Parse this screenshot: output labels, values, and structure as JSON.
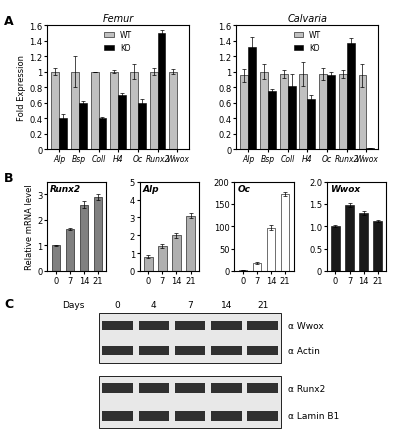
{
  "panel_labels": [
    "A",
    "B",
    "C"
  ],
  "chart_data": [
    {
      "type": "bar",
      "title": "Femur",
      "ylabel": "Fold Expression",
      "categories": [
        "Alp",
        "Bsp",
        "Coll",
        "H4",
        "Oc",
        "Runx2",
        "Wwox"
      ],
      "series": [
        {
          "name": "WT",
          "color": "#c0c0c0",
          "values": [
            1,
            1,
            1,
            1,
            1,
            1,
            1
          ],
          "errors": [
            0.05,
            0.2,
            0.0,
            0.02,
            0.1,
            0.05,
            0.03
          ]
        },
        {
          "name": "KO",
          "color": "#000000",
          "values": [
            0.4,
            0.6,
            0.4,
            0.7,
            0.6,
            1.5,
            0
          ],
          "errors": [
            0.05,
            0.02,
            0.01,
            0.02,
            0.05,
            0.04,
            0
          ]
        }
      ],
      "ylim": [
        0,
        1.6
      ],
      "yticks": [
        0,
        0.2,
        0.4,
        0.6,
        0.8,
        1,
        1.2,
        1.4,
        1.6
      ],
      "legend": "upper center"
    },
    {
      "type": "bar",
      "title": "Calvaria",
      "categories": [
        "Alp",
        "Bsp",
        "Coll",
        "H4",
        "Oc",
        "Runx2",
        "Wwox"
      ],
      "series": [
        {
          "name": "WT",
          "color": "#c0c0c0",
          "values": [
            0.95,
            1,
            0.97,
            0.97,
            0.97,
            0.97,
            0.95
          ],
          "errors": [
            0.08,
            0.1,
            0.05,
            0.15,
            0.08,
            0.05,
            0.15
          ]
        },
        {
          "name": "KO",
          "color": "#000000",
          "values": [
            1.32,
            0.75,
            0.82,
            0.65,
            0.95,
            1.37,
            0.01
          ],
          "errors": [
            0.12,
            0.03,
            0.15,
            0.05,
            0.05,
            0.06,
            0.0
          ]
        }
      ],
      "ylim": [
        0,
        1.6
      ],
      "yticks": [
        0,
        0.2,
        0.4,
        0.6,
        0.8,
        1,
        1.2,
        1.4,
        1.6
      ],
      "legend": "upper center"
    },
    {
      "type": "bar",
      "title": "Runx2",
      "ylabel": "Relative mRNA level",
      "categories": [
        "0",
        "7",
        "14",
        "21"
      ],
      "values": [
        1,
        1.65,
        2.6,
        2.9
      ],
      "errors": [
        0.02,
        0.05,
        0.15,
        0.1
      ],
      "color": "#808080",
      "ylim": [
        0,
        3.5
      ],
      "yticks": [
        0,
        1,
        2,
        3
      ]
    },
    {
      "type": "bar",
      "title": "Alp",
      "categories": [
        "0",
        "7",
        "14",
        "21"
      ],
      "values": [
        0.8,
        1.4,
        2.0,
        3.1
      ],
      "errors": [
        0.1,
        0.1,
        0.15,
        0.15
      ],
      "color": "#b0b0b0",
      "ylim": [
        0,
        5
      ],
      "yticks": [
        0,
        1,
        2,
        3,
        4,
        5
      ]
    },
    {
      "type": "bar",
      "title": "Oc",
      "categories": [
        "0",
        "7",
        "14",
        "21"
      ],
      "values": [
        1,
        18,
        97,
        172
      ],
      "errors": [
        0,
        2,
        5,
        5
      ],
      "color": "#ffffff",
      "ylim": [
        0,
        200
      ],
      "yticks": [
        0,
        50,
        100,
        150,
        200
      ]
    },
    {
      "type": "bar",
      "title": "Wwox",
      "categories": [
        "0",
        "7",
        "14",
        "21"
      ],
      "values": [
        1,
        1.48,
        1.3,
        1.12
      ],
      "errors": [
        0.02,
        0.05,
        0.04,
        0.03
      ],
      "color": "#1a1a1a",
      "ylim": [
        0,
        2.0
      ],
      "yticks": [
        0,
        0.5,
        {
          "value": 1,
          "label": "1.0"
        },
        1.5,
        {
          "value": 2,
          "label": "2.0"
        }
      ]
    }
  ],
  "blot": {
    "x_title": "Days",
    "lanes": [
      "0",
      "4",
      "7",
      "14",
      "21"
    ],
    "rows": [
      "α Wwox",
      "α Actin",
      "α Runx2",
      "α Lamin B1"
    ]
  }
}
